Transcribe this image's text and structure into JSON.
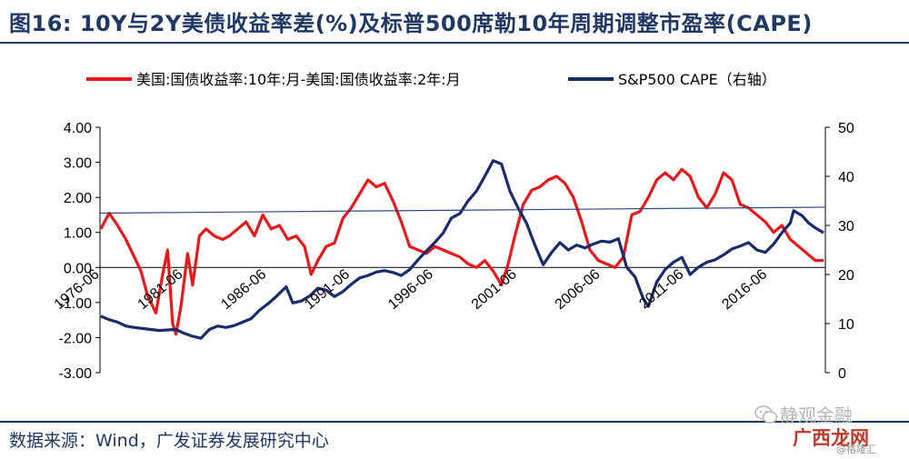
{
  "header": {
    "title": "图16: 10Y与2Y美债收益率差(%)及标普500席勒10年周期调整市盈率(CAPE)"
  },
  "footer": {
    "source": "数据来源：Wind，广发证券发展研究中心"
  },
  "watermark": {
    "line1": "静观金融",
    "line2": "广西龙网",
    "line3": "@格隆汇"
  },
  "chart_data": {
    "type": "line",
    "title": "",
    "xlabel": "",
    "ylabel": "",
    "ylim_left": [
      -3,
      4
    ],
    "ylim_right": [
      0,
      50
    ],
    "xlim": [
      1976.45,
      2019.9
    ],
    "left_ticks": [
      "4.00",
      "3.00",
      "2.00",
      "1.00",
      "0.00",
      "-1.00",
      "-2.00",
      "-3.00"
    ],
    "left_tick_values": [
      4,
      3,
      2,
      1,
      0,
      -1,
      -2,
      -3
    ],
    "right_ticks": [
      "50",
      "40",
      "30",
      "20",
      "10",
      "0"
    ],
    "right_tick_values": [
      50,
      40,
      30,
      20,
      10,
      0
    ],
    "x_ticks": [
      "1976-06",
      "1981-06",
      "1986-06",
      "1991-06",
      "1996-06",
      "2001-06",
      "2006-06",
      "2011-06",
      "2016-06"
    ],
    "x_tick_values": [
      1976.45,
      1981.45,
      1986.45,
      1991.45,
      1996.45,
      2001.45,
      2006.45,
      2011.45,
      2016.45
    ],
    "legend_position": "top",
    "series": [
      {
        "name": "美国:国债收益率:10年:月-美国:国债收益率:2年:月",
        "axis": "left",
        "color": "#e8191b",
        "x": [
          1976.5,
          1977.0,
          1977.5,
          1978.0,
          1978.5,
          1978.9,
          1979.3,
          1979.8,
          1980.2,
          1980.5,
          1980.8,
          1981.0,
          1981.3,
          1981.7,
          1982.0,
          1982.4,
          1982.8,
          1983.3,
          1983.8,
          1984.2,
          1984.7,
          1985.2,
          1985.7,
          1986.2,
          1986.7,
          1987.2,
          1987.7,
          1988.2,
          1988.7,
          1989.1,
          1989.5,
          1990.0,
          1990.5,
          1991.0,
          1991.5,
          1992.0,
          1992.5,
          1993.0,
          1993.5,
          1994.0,
          1994.5,
          1995.0,
          1995.5,
          1996.0,
          1996.5,
          1997.0,
          1997.5,
          1998.0,
          1998.5,
          1999.0,
          1999.5,
          2000.0,
          2000.5,
          2000.9,
          2001.3,
          2001.8,
          2002.3,
          2002.8,
          2003.3,
          2003.8,
          2004.3,
          2004.8,
          2005.3,
          2005.8,
          2006.3,
          2006.8,
          2007.3,
          2007.8,
          2008.3,
          2008.8,
          2009.3,
          2009.8,
          2010.3,
          2010.8,
          2011.3,
          2011.8,
          2012.3,
          2012.8,
          2013.3,
          2013.8,
          2014.3,
          2014.8,
          2015.3,
          2015.8,
          2016.3,
          2016.8,
          2017.3,
          2017.8,
          2018.3,
          2018.8,
          2019.3,
          2019.8
        ],
        "values": [
          1.1,
          1.55,
          1.2,
          0.8,
          0.3,
          -0.1,
          -0.8,
          -1.3,
          -0.2,
          0.5,
          -1.6,
          -1.9,
          -1.1,
          0.4,
          -0.5,
          0.9,
          1.1,
          0.9,
          0.8,
          0.9,
          1.1,
          1.3,
          0.9,
          1.5,
          1.1,
          1.2,
          0.8,
          0.9,
          0.6,
          -0.2,
          0.2,
          0.6,
          0.7,
          1.4,
          1.7,
          2.1,
          2.5,
          2.3,
          2.4,
          1.9,
          1.3,
          0.6,
          0.5,
          0.4,
          0.6,
          0.5,
          0.4,
          0.3,
          0.1,
          0.0,
          0.2,
          -0.1,
          -0.5,
          0.1,
          0.9,
          1.8,
          2.2,
          2.3,
          2.5,
          2.6,
          2.4,
          2.0,
          1.3,
          0.5,
          0.2,
          0.1,
          0.0,
          0.3,
          1.5,
          1.6,
          2.0,
          2.5,
          2.7,
          2.5,
          2.8,
          2.6,
          2.0,
          1.7,
          2.1,
          2.7,
          2.5,
          1.8,
          1.7,
          1.5,
          1.3,
          1.0,
          1.2,
          0.8,
          0.6,
          0.4,
          0.2,
          0.2
        ]
      },
      {
        "name": "S&P500 CAPE（右轴）",
        "axis": "right",
        "color": "#1a2b6b",
        "x": [
          1976.5,
          1977.0,
          1977.5,
          1978.0,
          1978.5,
          1979.0,
          1979.5,
          1980.0,
          1980.5,
          1981.0,
          1981.5,
          1982.0,
          1982.5,
          1983.0,
          1983.5,
          1984.0,
          1984.5,
          1985.0,
          1985.5,
          1986.0,
          1986.5,
          1987.0,
          1987.6,
          1988.0,
          1988.5,
          1989.0,
          1989.5,
          1990.0,
          1990.5,
          1991.0,
          1991.5,
          1992.0,
          1992.5,
          1993.0,
          1993.5,
          1994.0,
          1994.5,
          1995.0,
          1995.5,
          1996.0,
          1996.5,
          1997.0,
          1997.5,
          1998.0,
          1998.5,
          1999.0,
          1999.5,
          2000.0,
          2000.5,
          2001.0,
          2001.5,
          2002.0,
          2002.5,
          2003.0,
          2003.5,
          2004.0,
          2004.5,
          2005.0,
          2005.5,
          2006.0,
          2006.5,
          2007.0,
          2007.5,
          2008.0,
          2008.5,
          2009.0,
          2009.3,
          2009.8,
          2010.3,
          2010.8,
          2011.3,
          2011.8,
          2012.3,
          2012.8,
          2013.3,
          2013.8,
          2014.3,
          2014.8,
          2015.3,
          2015.8,
          2016.3,
          2016.8,
          2017.3,
          2017.8,
          2018.0,
          2018.5,
          2018.9,
          2019.3,
          2019.8
        ],
        "values": [
          11.5,
          10.8,
          10.3,
          9.5,
          9.2,
          9.0,
          8.8,
          8.6,
          8.7,
          8.8,
          8.0,
          7.4,
          7.0,
          8.8,
          9.5,
          9.2,
          9.6,
          10.3,
          11.0,
          12.7,
          14.0,
          15.5,
          17.5,
          14.2,
          14.6,
          15.6,
          17.2,
          16.8,
          15.5,
          16.5,
          18.0,
          19.3,
          19.8,
          20.5,
          20.8,
          20.4,
          19.8,
          21.0,
          23.0,
          24.8,
          26.5,
          28.4,
          31.5,
          32.4,
          35.0,
          37.0,
          40.0,
          43.2,
          42.5,
          37.0,
          33.5,
          30.5,
          26.0,
          22.0,
          24.5,
          26.5,
          25.0,
          26.0,
          25.4,
          26.2,
          26.8,
          26.6,
          27.3,
          21.5,
          19.5,
          15.0,
          13.5,
          18.5,
          21.0,
          22.5,
          23.5,
          20.0,
          21.5,
          22.5,
          23.0,
          24.0,
          25.2,
          25.8,
          26.5,
          25.0,
          24.5,
          26.2,
          28.5,
          30.5,
          33.0,
          32.0,
          30.5,
          29.5,
          28.5
        ]
      }
    ]
  }
}
